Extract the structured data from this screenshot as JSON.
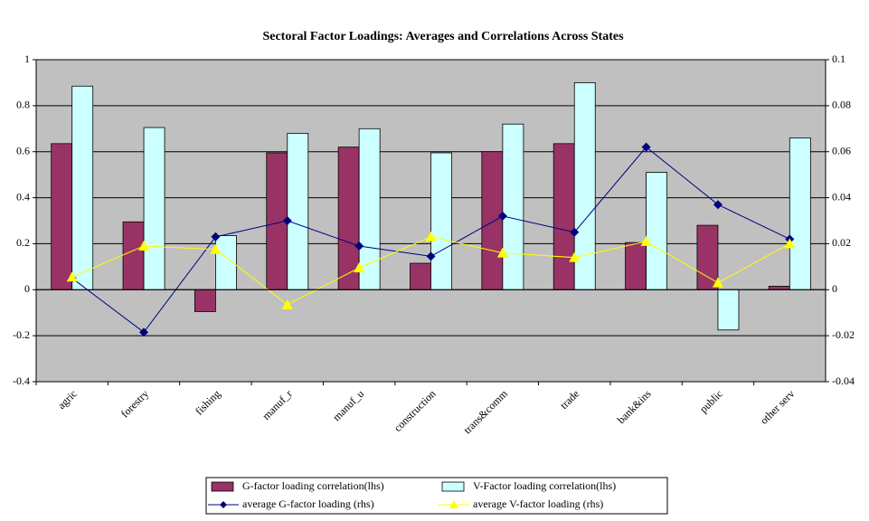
{
  "chart_data": {
    "type": "bar",
    "title": "Sectoral Factor Loadings: Averages and Correlations Across States",
    "categories": [
      "agric",
      "forestry",
      "fishing",
      "manuf_r",
      "manuf_u",
      "construction",
      "trans&comm",
      "trade",
      "bank&ins",
      "public",
      "other serv"
    ],
    "series": [
      {
        "name": "G-factor loading correlation(lhs)",
        "type": "bar",
        "color": "#993366",
        "values": [
          0.635,
          0.295,
          -0.095,
          0.595,
          0.62,
          0.115,
          0.6,
          0.635,
          0.205,
          0.28,
          0.015
        ]
      },
      {
        "name": "V-Factor loading correlation(lhs)",
        "type": "bar",
        "color": "#ccffff",
        "values": [
          0.885,
          0.705,
          0.235,
          0.68,
          0.7,
          0.595,
          0.72,
          0.9,
          0.51,
          -0.175,
          0.66
        ]
      },
      {
        "name": "average G-factor loading (rhs)",
        "type": "line",
        "axis": "y2",
        "marker": "diamond",
        "color": "#000080",
        "values": [
          0.005,
          -0.0185,
          0.023,
          0.03,
          0.019,
          0.0145,
          0.032,
          0.025,
          0.062,
          0.037,
          0.022
        ]
      },
      {
        "name": "average V-factor loading (rhs)",
        "type": "line",
        "axis": "y2",
        "marker": "triangle",
        "color": "#ffff00",
        "values": [
          0.0055,
          0.019,
          0.0175,
          -0.0065,
          0.0095,
          0.023,
          0.016,
          0.014,
          0.021,
          0.003,
          0.02
        ]
      }
    ],
    "ylim": [
      -0.4,
      1
    ],
    "yticks": [
      -0.4,
      -0.2,
      0,
      0.2,
      0.4,
      0.6,
      0.8,
      1
    ],
    "y2lim": [
      -0.04,
      0.1
    ],
    "y2ticks": [
      -0.04,
      -0.02,
      0,
      0.02,
      0.04,
      0.06,
      0.08,
      0.1
    ],
    "grid": true,
    "legend": "bottom"
  }
}
